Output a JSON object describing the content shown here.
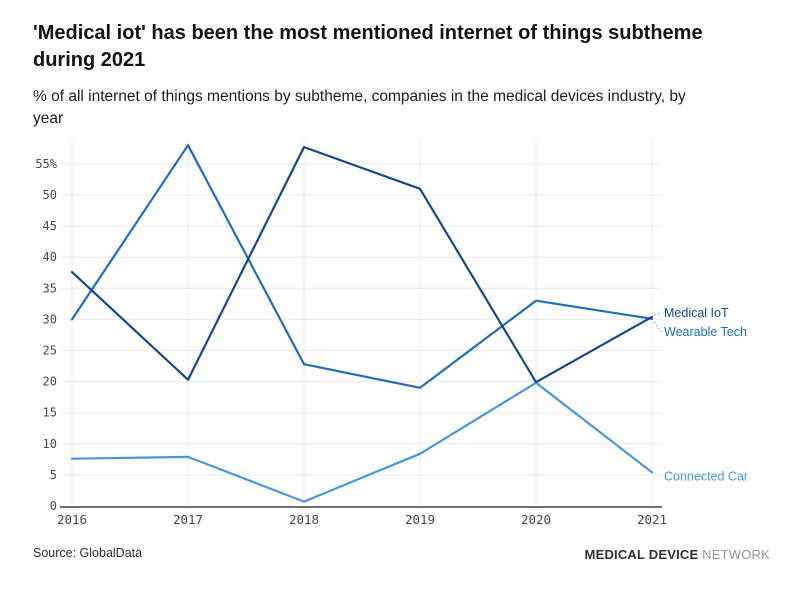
{
  "header": {
    "title": "'Medical iot' has been the most mentioned internet of things subtheme during 2021",
    "subtitle": "% of all internet of things mentions by subtheme, companies in the medical devices industry, by year"
  },
  "footer": {
    "source": "Source: GlobalData",
    "brand_primary": "MEDICAL DEVICE",
    "brand_secondary": "NETWORK"
  },
  "chart_data": {
    "type": "line",
    "title": "'Medical iot' has been the most mentioned internet of things subtheme during 2021",
    "subtitle": "% of all internet of things mentions by subtheme, companies in the medical devices industry, by year",
    "xlabel": "",
    "ylabel": "% of all internet of things mentions",
    "x": [
      2016,
      2017,
      2018,
      2019,
      2020,
      2021
    ],
    "series": [
      {
        "name": "Connected Car",
        "color": "#4795e8",
        "values": [
          7.6,
          7.9,
          0.7,
          8.4,
          19.8,
          5.4
        ]
      },
      {
        "name": "Wearable Tech",
        "color": "#1f6cc4",
        "values": [
          30,
          58,
          22.8,
          19,
          33,
          30.1
        ]
      },
      {
        "name": "Medical IoT",
        "color": "#17478f",
        "values": [
          37.6,
          20.3,
          57.7,
          51,
          19.9,
          30.4
        ]
      }
    ],
    "ylim": [
      0,
      58.8
    ],
    "yticks": [
      0,
      5,
      10,
      15,
      20,
      25,
      30,
      35,
      40,
      45,
      50,
      55
    ],
    "ytick_top_label": "55%",
    "grid": true,
    "legend_position": "right-end-labels",
    "colors": {
      "grid": "#ececec",
      "axis": "#444444",
      "tick_text": "#4a4a4a",
      "leader": "#7fa8d9"
    }
  }
}
